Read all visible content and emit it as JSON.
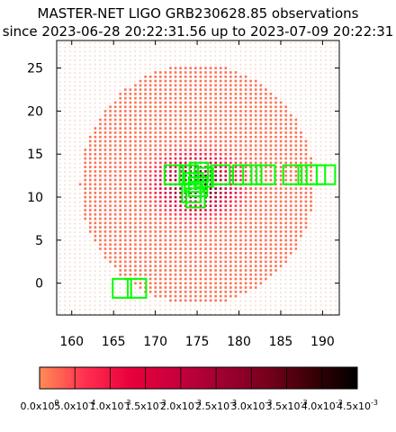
{
  "chart_data": {
    "type": "scatter",
    "title": "MASTER-NET LIGO GRB230628.85 observations",
    "subtitle": "since 2023-06-28 20:22:31.56 up to 2023-07-09 20:22:31",
    "xlim": [
      158.2,
      192
    ],
    "ylim": [
      -3.7,
      28.2
    ],
    "x_ticks": [
      160,
      165,
      170,
      175,
      180,
      185,
      190
    ],
    "y_ticks": [
      0,
      5,
      10,
      15,
      20,
      25
    ],
    "grid": false,
    "probability_map": {
      "center": [
        175,
        11.5
      ],
      "radius": 14,
      "peak_value": 0.0045,
      "colormap": [
        "#ff8c55",
        "#ff3050",
        "#e8003c",
        "#c8003c",
        "#a00030",
        "#78001e",
        "#3a0006",
        "#000000"
      ]
    },
    "observed_fields": [
      {
        "x": 166,
        "y": -0.6,
        "w": 2.2,
        "h": 2.2
      },
      {
        "x": 167.8,
        "y": -0.6,
        "w": 2.2,
        "h": 2.2
      },
      {
        "x": 172.2,
        "y": 12.6,
        "w": 2.2,
        "h": 2.2
      },
      {
        "x": 174.0,
        "y": 12.6,
        "w": 2.2,
        "h": 2.2
      },
      {
        "x": 175.2,
        "y": 12.9,
        "w": 2.2,
        "h": 2.2
      },
      {
        "x": 175.8,
        "y": 12.3,
        "w": 2.2,
        "h": 2.2
      },
      {
        "x": 174.6,
        "y": 11.7,
        "w": 2.2,
        "h": 2.2
      },
      {
        "x": 175.1,
        "y": 11.2,
        "w": 2.2,
        "h": 2.2
      },
      {
        "x": 174.3,
        "y": 10.5,
        "w": 2.2,
        "h": 2.2
      },
      {
        "x": 174.8,
        "y": 9.9,
        "w": 2.2,
        "h": 2.2
      },
      {
        "x": 177.8,
        "y": 12.6,
        "w": 2.2,
        "h": 2.2
      },
      {
        "x": 180.4,
        "y": 12.6,
        "w": 2.2,
        "h": 2.2
      },
      {
        "x": 181.6,
        "y": 12.6,
        "w": 2.2,
        "h": 2.2
      },
      {
        "x": 183.2,
        "y": 12.6,
        "w": 2.2,
        "h": 2.2
      },
      {
        "x": 186.4,
        "y": 12.6,
        "w": 2.2,
        "h": 2.2
      },
      {
        "x": 188.2,
        "y": 12.6,
        "w": 2.2,
        "h": 2.2
      },
      {
        "x": 189.2,
        "y": 12.6,
        "w": 2.2,
        "h": 2.2
      },
      {
        "x": 190.4,
        "y": 12.6,
        "w": 2.2,
        "h": 2.2
      }
    ],
    "field_color": "#00ff00",
    "colorbar": {
      "min": 0.0,
      "max": 0.0045,
      "tick_labels": [
        "0.0x10^0",
        "5.0x10^-4",
        "1.0x10^-3",
        "1.5x10^-3",
        "2.0x10^-3",
        "2.5x10^-3",
        "3.0x10^-3",
        "3.5x10^-3",
        "4.0x10^-3",
        "4.5x10^-3"
      ]
    }
  }
}
